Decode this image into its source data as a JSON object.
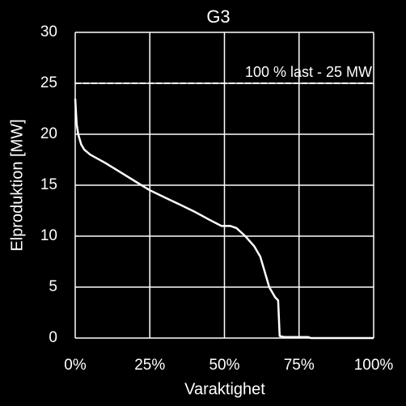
{
  "chart_data": {
    "type": "line",
    "title": "G3",
    "x_label": "Varaktighet",
    "y_label": "Elproduktion [MW]",
    "x": [
      0,
      0.5,
      1,
      2,
      3,
      5,
      10,
      15,
      20,
      25,
      30,
      35,
      40,
      45,
      49,
      52,
      54,
      57,
      60,
      62,
      64,
      65,
      67,
      68,
      68.5,
      70,
      78,
      79,
      100
    ],
    "series": [
      {
        "name": "G3",
        "color": "#ffffff",
        "values": [
          23.5,
          21,
          20,
          19,
          18.5,
          18,
          17.2,
          16.3,
          15.4,
          14.5,
          13.8,
          13.1,
          12.4,
          11.6,
          11,
          11,
          10.8,
          10,
          9,
          8,
          6,
          5,
          4,
          3.7,
          0.2,
          0.1,
          0.1,
          0,
          0
        ]
      }
    ],
    "reference_lines": [
      {
        "value": 25,
        "label": "100 % last - 25 MW",
        "color": "#ffffff"
      }
    ],
    "xlim": [
      0,
      100
    ],
    "xticks": [
      {
        "value": 0,
        "label": "0%"
      },
      {
        "value": 25,
        "label": "25%"
      },
      {
        "value": 50,
        "label": "50%"
      },
      {
        "value": 75,
        "label": "75%"
      },
      {
        "value": 100,
        "label": "100%"
      }
    ],
    "ylim": [
      0,
      30
    ],
    "yticks": [
      0,
      5,
      10,
      15,
      20,
      25,
      30
    ],
    "grid": true,
    "grid_color": "#ffffff"
  }
}
